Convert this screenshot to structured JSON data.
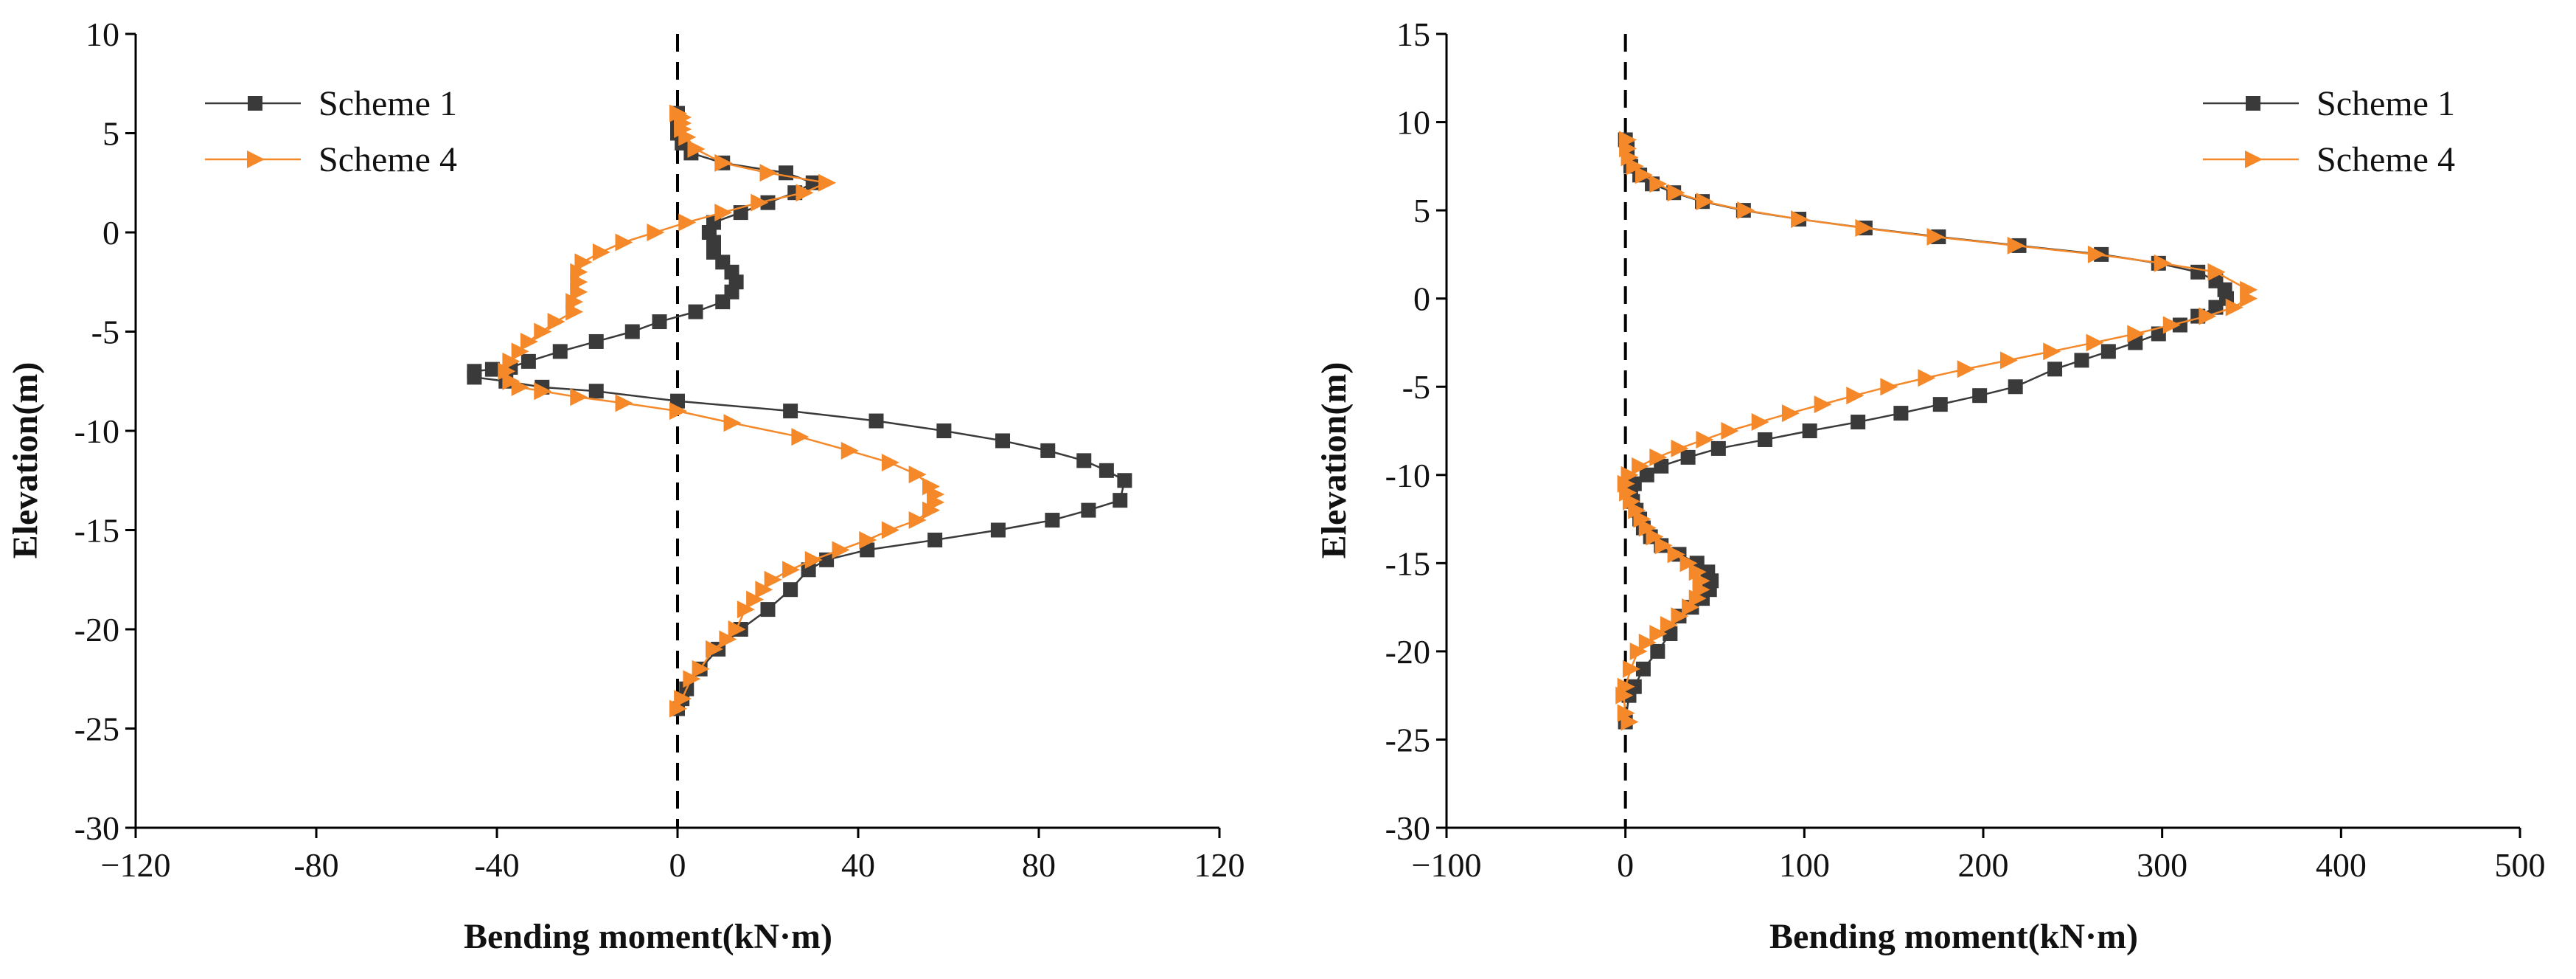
{
  "chart_data": [
    {
      "type": "line",
      "orientation": "depth-profile",
      "title": "",
      "xlabel": "Bending moment(kN·m)",
      "ylabel": "Elevation(m)",
      "xlim": [
        -120,
        120
      ],
      "ylim": [
        -30,
        10
      ],
      "xticks": [
        -120,
        -80,
        -40,
        0,
        40,
        80,
        120
      ],
      "yticks": [
        10,
        5,
        0,
        -5,
        -10,
        -15,
        -20,
        -25,
        -30
      ],
      "xtick_labels": [
        "−120",
        "-80",
        "-40",
        "0",
        "40",
        "80",
        "120"
      ],
      "ytick_labels": [
        "10",
        "5",
        "0",
        "-5",
        "-10",
        "-15",
        "-20",
        "-25",
        "-30"
      ],
      "reference_line": "x = 0 (dashed)",
      "legend_position": "top-left",
      "grid": false,
      "series": [
        {
          "name": "Scheme 1",
          "color": "#3a3a3a",
          "marker": "square",
          "x": [
            0,
            0,
            0,
            1,
            3,
            10,
            24,
            30,
            26,
            20,
            14,
            8,
            7,
            8,
            8,
            10,
            12,
            13,
            12,
            10,
            4,
            -4,
            -10,
            -18,
            -26,
            -33,
            -37,
            -41,
            -45,
            -45,
            -38,
            -30,
            -18,
            0,
            25,
            44,
            59,
            72,
            82,
            90,
            95,
            99,
            98,
            91,
            83,
            71,
            57,
            42,
            33,
            29,
            25,
            20,
            14,
            9,
            5,
            2,
            1,
            0
          ],
          "y": [
            6,
            5.5,
            5,
            4.5,
            4,
            3.5,
            3,
            2.5,
            2,
            1.5,
            1,
            0.5,
            0,
            -0.5,
            -1,
            -1.5,
            -2,
            -2.5,
            -3,
            -3.5,
            -4,
            -4.5,
            -5,
            -5.5,
            -6,
            -6.5,
            -6.8,
            -6.9,
            -7,
            -7.3,
            -7.5,
            -7.8,
            -8,
            -8.5,
            -9,
            -9.5,
            -10,
            -10.5,
            -11,
            -11.5,
            -12,
            -12.5,
            -13.5,
            -14,
            -14.5,
            -15,
            -15.5,
            -16,
            -16.5,
            -17,
            -18,
            -19,
            -20,
            -21,
            -22,
            -23,
            -23.5,
            -24
          ]
        },
        {
          "name": "Scheme 4",
          "color": "#f5892a",
          "marker": "triangle-right",
          "x": [
            0,
            1,
            1,
            1,
            2,
            4,
            10,
            20,
            33,
            28,
            18,
            10,
            2,
            -5,
            -12,
            -17,
            -21,
            -22,
            -22,
            -22,
            -23,
            -23,
            -27,
            -30,
            -33,
            -35,
            -37,
            -38,
            -37,
            -35,
            -30,
            -22,
            -12,
            0,
            12,
            27,
            38,
            47,
            53,
            56,
            57,
            57,
            56,
            53,
            47,
            42,
            36,
            30,
            25,
            21,
            19,
            17,
            15,
            13,
            11,
            8,
            5,
            3,
            1,
            0
          ],
          "y": [
            6,
            5.8,
            5.5,
            5.2,
            4.8,
            4.2,
            3.5,
            3,
            2.5,
            2,
            1.5,
            1,
            0.5,
            0,
            -0.5,
            -1,
            -1.5,
            -2,
            -2.5,
            -3,
            -3.5,
            -4,
            -4.5,
            -5,
            -5.5,
            -6,
            -6.5,
            -7,
            -7.5,
            -7.8,
            -8,
            -8.3,
            -8.6,
            -9,
            -9.6,
            -10.3,
            -11,
            -11.6,
            -12.2,
            -12.8,
            -13.2,
            -13.6,
            -14,
            -14.5,
            -15,
            -15.5,
            -16,
            -16.5,
            -17,
            -17.5,
            -18,
            -18.5,
            -19,
            -20,
            -20.5,
            -21,
            -22,
            -22.5,
            -23.5,
            -24
          ]
        }
      ]
    },
    {
      "type": "line",
      "orientation": "depth-profile",
      "title": "",
      "xlabel": "Bending moment(kN·m)",
      "ylabel": "Elevation(m)",
      "xlim": [
        -100,
        500
      ],
      "ylim": [
        -30,
        15
      ],
      "xticks": [
        -100,
        0,
        100,
        200,
        300,
        400,
        500
      ],
      "yticks": [
        15,
        10,
        5,
        0,
        -5,
        -10,
        -15,
        -20,
        -25,
        -30
      ],
      "xtick_labels": [
        "−100",
        "0",
        "100",
        "200",
        "300",
        "400",
        "500"
      ],
      "ytick_labels": [
        "15",
        "10",
        "5",
        "0",
        "-5",
        "-10",
        "-15",
        "-20",
        "-25",
        "-30"
      ],
      "reference_line": "x = 0 (dashed)",
      "legend_position": "top-right",
      "grid": false,
      "series": [
        {
          "name": "Scheme 1",
          "color": "#3a3a3a",
          "marker": "square",
          "x": [
            0,
            1,
            3,
            8,
            15,
            27,
            43,
            66,
            97,
            134,
            175,
            220,
            266,
            298,
            320,
            330,
            335,
            336,
            330,
            320,
            310,
            298,
            285,
            270,
            255,
            240,
            218,
            198,
            176,
            154,
            130,
            103,
            78,
            52,
            35,
            20,
            12,
            5,
            3,
            4,
            6,
            8,
            10,
            14,
            20,
            30,
            40,
            46,
            48,
            47,
            43,
            37,
            30,
            25,
            18,
            10,
            5,
            2,
            0
          ],
          "y": [
            9,
            8.5,
            7.5,
            7,
            6.5,
            6,
            5.5,
            5,
            4.5,
            4,
            3.5,
            3,
            2.5,
            2,
            1.5,
            1,
            0.5,
            0,
            -0.5,
            -1,
            -1.5,
            -2,
            -2.5,
            -3,
            -3.5,
            -4,
            -5,
            -5.5,
            -6,
            -6.5,
            -7,
            -7.5,
            -8,
            -8.5,
            -9,
            -9.5,
            -10,
            -10.5,
            -11,
            -11.5,
            -12,
            -12.5,
            -13,
            -13.5,
            -14,
            -14.5,
            -15,
            -15.5,
            -16,
            -16.5,
            -17,
            -17.5,
            -18,
            -19,
            -20,
            -21,
            -22,
            -22.5,
            -24
          ]
        },
        {
          "name": "Scheme 4",
          "color": "#f5892a",
          "marker": "triangle-right",
          "x": [
            1,
            1,
            2,
            5,
            10,
            18,
            28,
            44,
            67,
            97,
            133,
            173,
            218,
            263,
            300,
            330,
            348,
            348,
            340,
            325,
            305,
            285,
            262,
            238,
            214,
            190,
            168,
            147,
            128,
            110,
            92,
            75,
            58,
            44,
            30,
            18,
            8,
            2,
            0,
            1,
            3,
            6,
            9,
            12,
            16,
            21,
            28,
            35,
            40,
            42,
            42,
            40,
            36,
            30,
            24,
            18,
            12,
            7,
            3,
            0,
            -1,
            0,
            2
          ],
          "y": [
            9,
            8.5,
            8,
            7.5,
            7,
            6.5,
            6,
            5.5,
            5,
            4.5,
            4,
            3.5,
            3,
            2.5,
            2,
            1.5,
            0.5,
            0,
            -0.5,
            -1,
            -1.5,
            -2,
            -2.5,
            -3,
            -3.5,
            -4,
            -4.5,
            -5,
            -5.5,
            -6,
            -6.5,
            -7,
            -7.5,
            -8,
            -8.5,
            -9,
            -9.5,
            -10,
            -10.5,
            -11,
            -11.5,
            -12,
            -12.5,
            -13,
            -13.5,
            -14,
            -14.5,
            -15,
            -15.5,
            -16,
            -16.5,
            -17,
            -17.5,
            -18,
            -18.5,
            -19,
            -19.5,
            -20,
            -21,
            -22,
            -22.5,
            -23.5,
            -24
          ]
        }
      ]
    }
  ]
}
